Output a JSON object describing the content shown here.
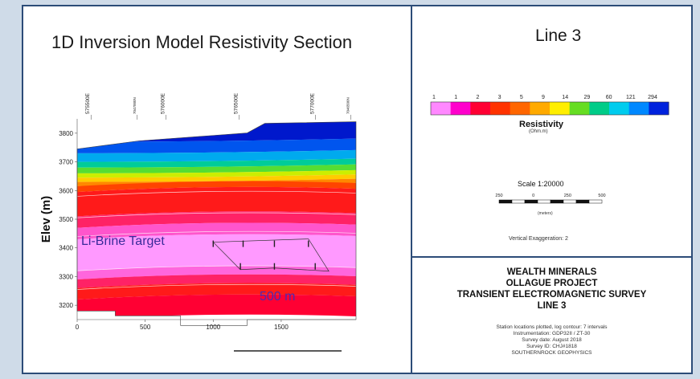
{
  "chart_data": {
    "type": "heatmap",
    "title": "1D Inversion Model Resistivity Section",
    "ylabel": "Elev (m)",
    "xlabel": "",
    "xlim": [
      0,
      2050
    ],
    "ylim": [
      3150,
      3850
    ],
    "x_ticks": [
      "0",
      "500",
      "1000",
      "1500"
    ],
    "x_tick_values": [
      0,
      500,
      1000,
      1500
    ],
    "y_ticks": [
      "3800",
      "3700",
      "3600",
      "3500",
      "3400",
      "3300",
      "3200"
    ],
    "y_tick_values": [
      3800,
      3700,
      3600,
      3500,
      3400,
      3300,
      3200
    ],
    "station_labels": [
      "575500E",
      "7047000N",
      "576000E",
      "576500E",
      "577000E",
      "7046500N"
    ],
    "station_positions": [
      90,
      430,
      640,
      1180,
      1740,
      2000
    ],
    "annotations": {
      "target_label": "Li-Brine Target",
      "distance_label": "500 m"
    },
    "section_elevations": {
      "surface_left": 3745,
      "surface_right": 3840,
      "conductive_top": 3610,
      "target_zone": [
        3330,
        3420
      ],
      "base": 3180
    },
    "legend": {
      "title": "Resistivity",
      "unit": "(Ohm.m)",
      "values": [
        "1",
        "1",
        "2",
        "3",
        "5",
        "9",
        "14",
        "29",
        "60",
        "121",
        "294"
      ],
      "colors": [
        "#ff88ff",
        "#ff00cc",
        "#ff0033",
        "#ff3300",
        "#ff6600",
        "#ffaa00",
        "#ffee00",
        "#66dd22",
        "#00cc88",
        "#00ccee",
        "#0088ff",
        "#0022dd"
      ]
    }
  },
  "panel": {
    "line_title": "Line 3",
    "scale_label": "Scale 1:20000",
    "scale_ticks": [
      "250",
      "0",
      "250",
      "500"
    ],
    "scale_units": "(meters)",
    "vertical_exaggeration": "Vertical Exaggeration: 2"
  },
  "company_block": {
    "lines": [
      "WEALTH MINERALS",
      "OLLAGUE PROJECT",
      "TRANSIENT ELECTROMAGNETIC SURVEY",
      "LINE 3"
    ],
    "notes": [
      "Station locations plotted, log contour: 7 intervals",
      "Instrumentation: GDP32II / ZT-30",
      "Survey date: August 2018",
      "Survey ID: CHJ#1818",
      "SOUTHERNROCK GEOPHYSICS"
    ]
  }
}
